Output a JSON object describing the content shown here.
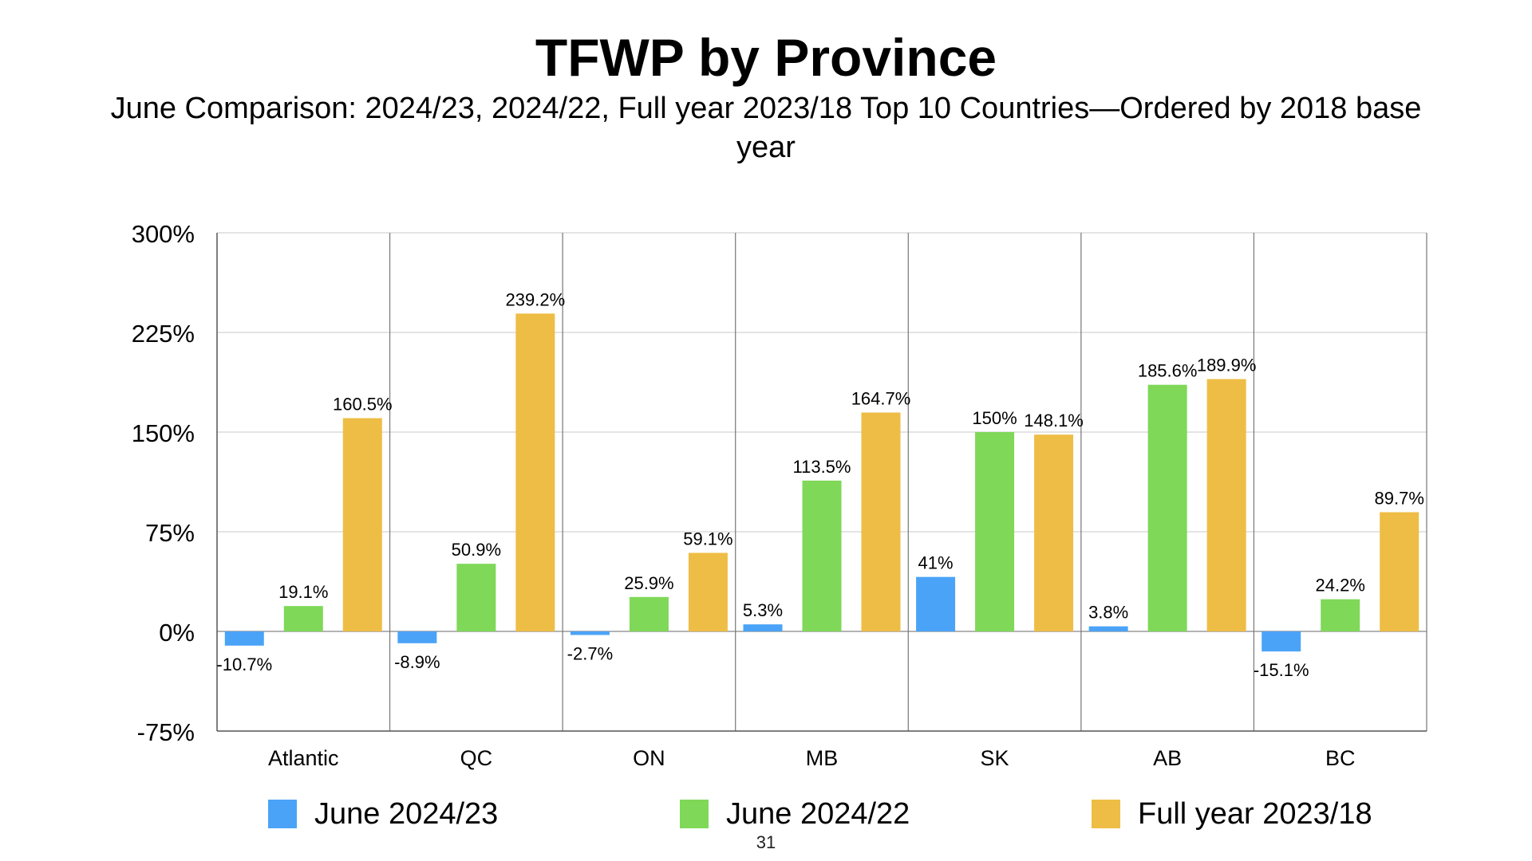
{
  "title": "TFWP by Province",
  "subtitle": "June Comparison: 2024/23, 2024/22, Full year 2023/18 Top 10 Countries—Ordered by 2018 base year",
  "page_number": "31",
  "legend": [
    {
      "label": "June 2024/23",
      "color": "#4BA3F7"
    },
    {
      "label": "June 2024/22",
      "color": "#7FD858"
    },
    {
      "label": "Full year 2023/18",
      "color": "#EEBD45"
    }
  ],
  "chart_data": {
    "type": "bar",
    "title": "TFWP by Province",
    "subtitle": "June Comparison: 2024/23, 2024/22, Full year 2023/18 Top 10 Countries—Ordered by 2018 base year",
    "xlabel": "",
    "ylabel": "",
    "ylim": [
      -75,
      300
    ],
    "y_ticks": [
      300,
      225,
      150,
      75,
      0,
      -75
    ],
    "y_tick_labels": [
      "300%",
      "225%",
      "150%",
      "75%",
      "0%",
      "-75%"
    ],
    "grid": true,
    "legend_position": "bottom",
    "categories": [
      "Atlantic",
      "QC",
      "ON",
      "MB",
      "SK",
      "AB",
      "BC"
    ],
    "series": [
      {
        "name": "June 2024/23",
        "color": "#4BA3F7",
        "values": [
          -10.7,
          -8.9,
          -2.7,
          5.3,
          41,
          3.8,
          -15.1
        ],
        "labels": [
          "-10.7%",
          "-8.9%",
          "-2.7%",
          "5.3%",
          "41%",
          "3.8%",
          "-15.1%"
        ]
      },
      {
        "name": "June 2024/22",
        "color": "#7FD858",
        "values": [
          19.1,
          50.9,
          25.9,
          113.5,
          150,
          185.6,
          24.2
        ],
        "labels": [
          "19.1%",
          "50.9%",
          "25.9%",
          "113.5%",
          "150%",
          "185.6%",
          "24.2%"
        ]
      },
      {
        "name": "Full year 2023/18",
        "color": "#EEBD45",
        "values": [
          160.5,
          239.2,
          59.1,
          164.7,
          148.1,
          189.9,
          89.7
        ],
        "labels": [
          "160.5%",
          "239.2%",
          "59.1%",
          "164.7%",
          "148.1%",
          "189.9%",
          "89.7%"
        ]
      }
    ]
  }
}
